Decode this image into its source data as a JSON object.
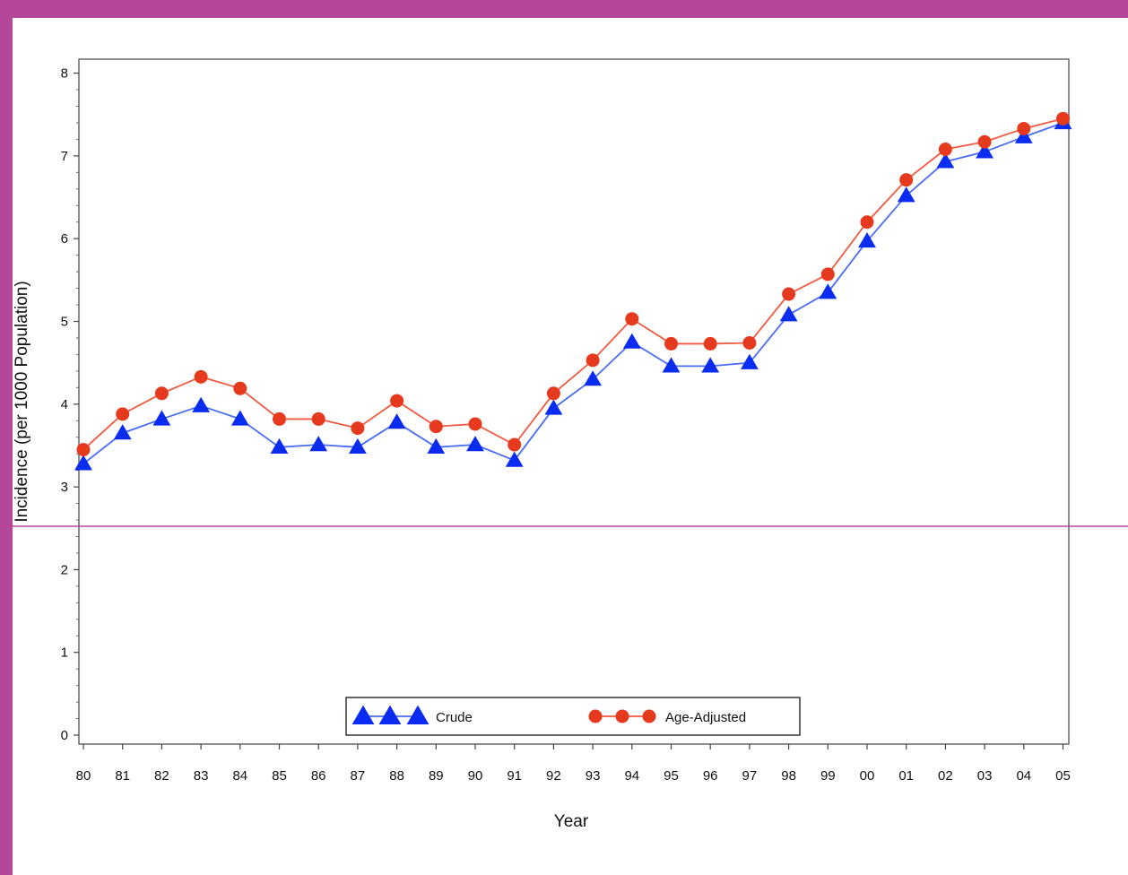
{
  "colors": {
    "frame": "#b5479a",
    "crude": "#0a2cf0",
    "crude_line": "#4a6cf5",
    "adjusted": "#e63a1e",
    "adjusted_line": "#f05a40",
    "axis": "#555555"
  },
  "chart_data": {
    "type": "line",
    "title": "",
    "xlabel": "Year",
    "ylabel": "Incidence (per 1000 Population)",
    "categories": [
      "80",
      "81",
      "82",
      "83",
      "84",
      "85",
      "86",
      "87",
      "88",
      "89",
      "90",
      "91",
      "92",
      "93",
      "94",
      "95",
      "96",
      "97",
      "98",
      "99",
      "00",
      "01",
      "02",
      "03",
      "04",
      "05"
    ],
    "yticks": [
      0,
      1,
      2,
      3,
      4,
      5,
      6,
      7,
      8
    ],
    "ylim": [
      0,
      8
    ],
    "grid": false,
    "legend_position": "bottom-center",
    "series": [
      {
        "name": "Crude",
        "marker": "triangle",
        "values": [
          3.28,
          3.65,
          3.82,
          3.98,
          3.82,
          3.48,
          3.51,
          3.48,
          3.78,
          3.48,
          3.51,
          3.32,
          3.95,
          4.3,
          4.75,
          4.46,
          4.46,
          4.5,
          5.08,
          5.35,
          5.97,
          6.52,
          6.93,
          7.05,
          7.23,
          7.4
        ]
      },
      {
        "name": "Age-Adjusted",
        "marker": "circle",
        "values": [
          3.45,
          3.88,
          4.13,
          4.33,
          4.19,
          3.82,
          3.82,
          3.71,
          4.04,
          3.73,
          3.76,
          3.51,
          4.13,
          4.53,
          5.03,
          4.73,
          4.73,
          4.74,
          5.33,
          5.57,
          6.2,
          6.71,
          7.08,
          7.17,
          7.33,
          7.45
        ]
      }
    ]
  }
}
